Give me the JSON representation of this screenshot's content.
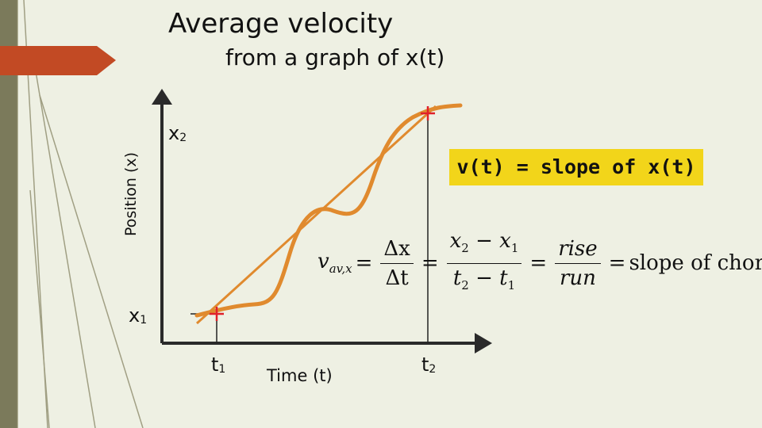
{
  "title": "Average velocity",
  "subtitle": "from a graph of x(t)",
  "axes": {
    "y_label": "Position (x)",
    "x_label": "Time (t)"
  },
  "points": {
    "x1": "x",
    "x1_sub": "1",
    "x2": "x",
    "x2_sub": "2",
    "t1": "t",
    "t1_sub": "1",
    "t2": "t",
    "t2_sub": "2"
  },
  "note": "v(t) = slope of x(t)",
  "formula": {
    "lhs": "v",
    "lhs_sub": "av,x",
    "eq": "=",
    "dx": "Δx",
    "dt": "Δt",
    "x2": "x",
    "x2_sub": "2",
    "minus": "−",
    "x1": "x",
    "x1_sub": "1",
    "t2": "t",
    "t2_sub": "2",
    "t1": "t",
    "t1_sub": "1",
    "rise": "rise",
    "run": "run",
    "result": "slope of chord"
  },
  "colors": {
    "background": "#eef0e3",
    "curve": "#e08a2e",
    "chord": "#e08a2e",
    "marker": "#e0202a",
    "highlight": "#f2d51a",
    "accent_arrow": "#c24a24",
    "side_bar": "#7b7a5b"
  }
}
